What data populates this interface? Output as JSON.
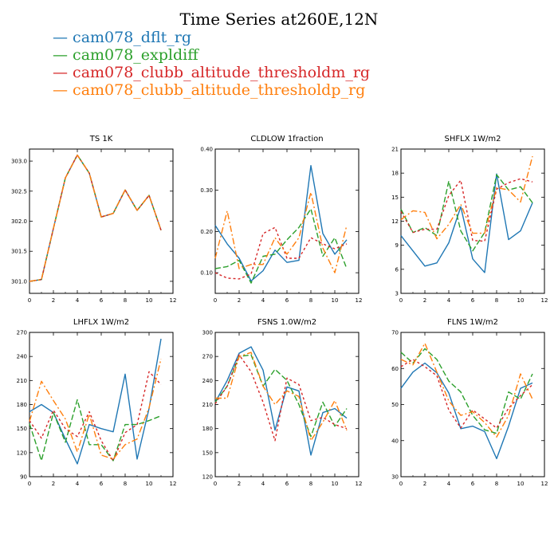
{
  "title": "Time Series at260E,12N",
  "legend": [
    {
      "label": "cam078_dflt_rg",
      "color": "#1f77b4"
    },
    {
      "label": "cam078_expldiff",
      "color": "#2ca02c"
    },
    {
      "label": "cam078_clubb_altitude_thresholdm_rg",
      "color": "#d62728"
    },
    {
      "label": "cam078_clubb_altitude_thresholdp_rg",
      "color": "#ff7f0e"
    }
  ],
  "chart_data": [
    {
      "type": "line",
      "title": "TS   1K",
      "xlim": [
        0,
        12
      ],
      "ylim": [
        300.8,
        303.2
      ],
      "xticks": [
        0,
        2,
        4,
        6,
        8,
        10,
        12
      ],
      "yticks": [
        301.0,
        301.5,
        302.0,
        302.5,
        303.0
      ],
      "ytick_labels": [
        "301.0",
        "301.5",
        "302.0",
        "302.5",
        "303.0"
      ],
      "x": [
        0,
        1,
        2,
        3,
        4,
        5,
        6,
        7,
        8,
        9,
        10,
        11
      ],
      "series": [
        {
          "name": "cam078_dflt_rg",
          "values": [
            301.0,
            301.03,
            301.88,
            302.72,
            303.1,
            302.8,
            302.07,
            302.13,
            302.52,
            302.18,
            302.43,
            301.85
          ]
        },
        {
          "name": "cam078_expldiff",
          "values": [
            301.0,
            301.03,
            301.88,
            302.72,
            303.1,
            302.8,
            302.07,
            302.13,
            302.52,
            302.18,
            302.43,
            301.85
          ]
        },
        {
          "name": "cam078_clubb_altitude_thresholdm_rg",
          "values": [
            301.0,
            301.03,
            301.88,
            302.72,
            303.1,
            302.8,
            302.07,
            302.13,
            302.52,
            302.18,
            302.43,
            301.85
          ]
        },
        {
          "name": "cam078_clubb_altitude_thresholdp_rg",
          "values": [
            301.0,
            301.03,
            301.88,
            302.72,
            303.1,
            302.8,
            302.07,
            302.13,
            302.52,
            302.18,
            302.43,
            301.85
          ]
        }
      ]
    },
    {
      "type": "line",
      "title": "CLDLOW   1fraction",
      "xlim": [
        0,
        12
      ],
      "ylim": [
        0.05,
        0.4
      ],
      "xticks": [
        0,
        2,
        4,
        6,
        8,
        10,
        12
      ],
      "yticks": [
        0.1,
        0.2,
        0.3,
        0.4
      ],
      "ytick_labels": [
        "0.10",
        "0.20",
        "0.30",
        "0.40"
      ],
      "x": [
        0,
        1,
        2,
        3,
        4,
        5,
        6,
        7,
        8,
        9,
        10,
        11
      ],
      "series": [
        {
          "name": "cam078_dflt_rg",
          "values": [
            0.215,
            0.17,
            0.135,
            0.08,
            0.105,
            0.155,
            0.125,
            0.13,
            0.36,
            0.195,
            0.145,
            0.18
          ]
        },
        {
          "name": "cam078_expldiff",
          "values": [
            0.11,
            0.115,
            0.13,
            0.075,
            0.14,
            0.145,
            0.18,
            0.21,
            0.255,
            0.14,
            0.185,
            0.11
          ]
        },
        {
          "name": "cam078_clubb_altitude_thresholdm_rg",
          "values": [
            0.1,
            0.087,
            0.085,
            0.097,
            0.195,
            0.21,
            0.135,
            0.135,
            0.185,
            0.17,
            0.158,
            0.17
          ]
        },
        {
          "name": "cam078_clubb_altitude_thresholdp_rg",
          "values": [
            0.135,
            0.25,
            0.11,
            0.12,
            0.12,
            0.185,
            0.145,
            0.185,
            0.295,
            0.16,
            0.1,
            0.215
          ]
        }
      ]
    },
    {
      "type": "line",
      "title": "SHFLX   1W/m2",
      "xlim": [
        0,
        12
      ],
      "ylim": [
        3,
        21
      ],
      "xticks": [
        0,
        2,
        4,
        6,
        8,
        10,
        12
      ],
      "yticks": [
        3,
        6,
        9,
        12,
        15,
        18,
        21
      ],
      "ytick_labels": [
        "3",
        "6",
        "9",
        "12",
        "15",
        "18",
        "21"
      ],
      "x": [
        0,
        1,
        2,
        3,
        4,
        5,
        6,
        7,
        8,
        9,
        10,
        11
      ],
      "series": [
        {
          "name": "cam078_dflt_rg",
          "values": [
            10.2,
            8.3,
            6.4,
            6.8,
            9.3,
            13.8,
            7.3,
            5.6,
            17.9,
            9.7,
            10.8,
            14.3
          ]
        },
        {
          "name": "cam078_expldiff",
          "values": [
            13.5,
            10.6,
            11.2,
            10.2,
            17.0,
            10.8,
            8.3,
            10.6,
            17.8,
            15.9,
            16.3,
            14.3
          ]
        },
        {
          "name": "cam078_clubb_altitude_thresholdm_rg",
          "values": [
            13.2,
            10.6,
            11.0,
            11.0,
            15.2,
            17.1,
            9.6,
            9.5,
            16.0,
            16.8,
            17.3,
            16.9
          ]
        },
        {
          "name": "cam078_clubb_altitude_thresholdp_rg",
          "values": [
            12.2,
            13.3,
            13.1,
            9.8,
            11.6,
            14.1,
            10.5,
            10.5,
            16.2,
            15.9,
            14.4,
            20.1
          ]
        }
      ]
    },
    {
      "type": "line",
      "title": "LHFLX   1W/m2",
      "xlim": [
        0,
        12
      ],
      "ylim": [
        90,
        270
      ],
      "xticks": [
        0,
        2,
        4,
        6,
        8,
        10,
        12
      ],
      "yticks": [
        90,
        120,
        150,
        180,
        210,
        240,
        270
      ],
      "ytick_labels": [
        "90",
        "120",
        "150",
        "180",
        "210",
        "240",
        "270"
      ],
      "x": [
        0,
        1,
        2,
        3,
        4,
        5,
        6,
        7,
        8,
        9,
        10,
        11
      ],
      "series": [
        {
          "name": "cam078_dflt_rg",
          "values": [
            171,
            180,
            170,
            137,
            106,
            155,
            150,
            146,
            218,
            112,
            175,
            262
          ]
        },
        {
          "name": "cam078_expldiff",
          "values": [
            156,
            110,
            170,
            133,
            186,
            130,
            130,
            110,
            155,
            155,
            160,
            166
          ]
        },
        {
          "name": "cam078_clubb_altitude_thresholdm_rg",
          "values": [
            160,
            138,
            173,
            150,
            140,
            171,
            135,
            110,
            145,
            155,
            221,
            205
          ]
        },
        {
          "name": "cam078_clubb_altitude_thresholdp_rg",
          "values": [
            159,
            209,
            185,
            162,
            121,
            168,
            117,
            112,
            130,
            137,
            176,
            237
          ]
        }
      ]
    },
    {
      "type": "line",
      "title": "FSNS   1.0W/m2",
      "xlim": [
        0,
        12
      ],
      "ylim": [
        120,
        300
      ],
      "xticks": [
        0,
        2,
        4,
        6,
        8,
        10,
        12
      ],
      "yticks": [
        120,
        150,
        180,
        210,
        240,
        270,
        300
      ],
      "ytick_labels": [
        "120",
        "150",
        "180",
        "210",
        "240",
        "270",
        "300"
      ],
      "x": [
        0,
        1,
        2,
        3,
        4,
        5,
        6,
        7,
        8,
        9,
        10,
        11
      ],
      "series": [
        {
          "name": "cam078_dflt_rg",
          "values": [
            213,
            240,
            274,
            282,
            253,
            178,
            232,
            227,
            147,
            200,
            205,
            193
          ]
        },
        {
          "name": "cam078_expldiff",
          "values": [
            213,
            233,
            270,
            272,
            233,
            254,
            240,
            210,
            170,
            213,
            183,
            205
          ]
        },
        {
          "name": "cam078_clubb_altitude_thresholdm_rg",
          "values": [
            211,
            233,
            272,
            251,
            213,
            165,
            243,
            235,
            190,
            194,
            185,
            180
          ]
        },
        {
          "name": "cam078_clubb_altitude_thresholdp_rg",
          "values": [
            218,
            218,
            270,
            275,
            233,
            210,
            227,
            220,
            165,
            188,
            215,
            178
          ]
        }
      ]
    },
    {
      "type": "line",
      "title": "FLNS   1W/m2",
      "xlim": [
        0,
        12
      ],
      "ylim": [
        30,
        70
      ],
      "xticks": [
        0,
        2,
        4,
        6,
        8,
        10,
        12
      ],
      "yticks": [
        30,
        40,
        50,
        60,
        70
      ],
      "ytick_labels": [
        "30",
        "40",
        "50",
        "60",
        "70"
      ],
      "x": [
        0,
        1,
        2,
        3,
        4,
        5,
        6,
        7,
        8,
        9,
        10,
        11
      ],
      "series": [
        {
          "name": "cam078_dflt_rg",
          "values": [
            54.5,
            59,
            61.5,
            58.8,
            53.2,
            43.3,
            44.0,
            42.5,
            35.0,
            44.0,
            54.5,
            56.0
          ]
        },
        {
          "name": "cam078_expldiff",
          "values": [
            64.5,
            61.5,
            65.5,
            62.5,
            56.5,
            53.5,
            47.0,
            43.0,
            42.0,
            53.5,
            51.5,
            58.5
          ]
        },
        {
          "name": "cam078_clubb_altitude_thresholdm_rg",
          "values": [
            60.5,
            62.5,
            60.5,
            58.0,
            48.5,
            43.5,
            48.5,
            46.0,
            43.5,
            49.0,
            52.5,
            55.5
          ]
        },
        {
          "name": "cam078_clubb_altitude_thresholdp_rg",
          "values": [
            62.5,
            61.0,
            67.0,
            59.0,
            51.0,
            47.0,
            48.0,
            45.0,
            41.0,
            47.0,
            58.5,
            51.5
          ]
        }
      ]
    }
  ]
}
